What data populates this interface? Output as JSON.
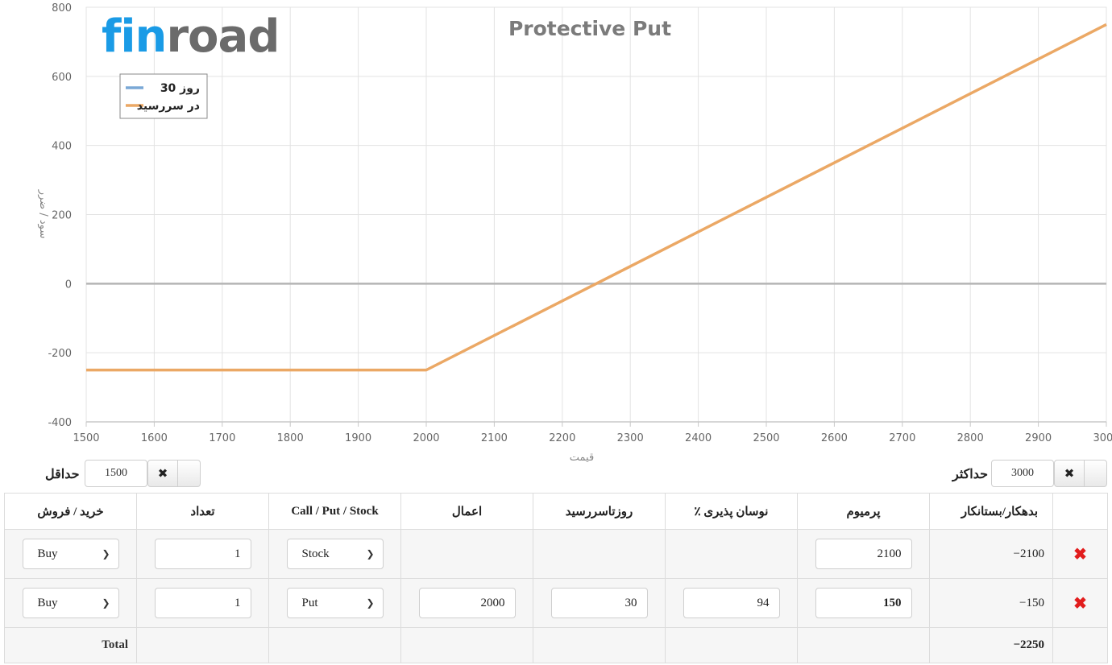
{
  "logo": {
    "part1": "fin",
    "part2": "road"
  },
  "chart_data": {
    "type": "line",
    "title": "Protective Put",
    "xlabel": "قیمت",
    "ylabel": "سود / ضرر",
    "xlim": [
      1500,
      3000
    ],
    "ylim": [
      -400,
      800
    ],
    "xticks": [
      1500,
      1600,
      1700,
      1800,
      1900,
      2000,
      2100,
      2200,
      2300,
      2400,
      2500,
      2600,
      2700,
      2800,
      2900,
      3000
    ],
    "yticks": [
      -400,
      -200,
      0,
      200,
      400,
      600,
      800
    ],
    "grid": true,
    "legend_position": "top-left",
    "series": [
      {
        "name": "روز 30",
        "color": "#7aa8d6",
        "x": [],
        "y": []
      },
      {
        "name": "در سررسید",
        "color": "#eba865",
        "x": [
          1500,
          2000,
          3000
        ],
        "y": [
          -250,
          -250,
          750
        ]
      }
    ]
  },
  "controls": {
    "min_label": "حداقل",
    "min_value": "1500",
    "max_label": "حداکثر",
    "max_value": "3000",
    "clear_icon": "✖"
  },
  "table": {
    "headers": [
      "خرید / فروش",
      "تعداد",
      "Call / Put / Stock",
      "اعمال",
      "روزتاسررسید",
      "٪ نوسان پذیری",
      "پرمیوم",
      "بدهکار/بستانکار",
      ""
    ],
    "rows": [
      {
        "side": "Buy",
        "qty": "1",
        "type": "Stock",
        "strike": "",
        "days": "",
        "vol": "",
        "premium": "2100",
        "debit": "−2100",
        "delete": "✖"
      },
      {
        "side": "Buy",
        "qty": "1",
        "type": "Put",
        "strike": "2000",
        "days": "30",
        "vol": "94",
        "premium": "150",
        "debit": "−150",
        "delete": "✖"
      }
    ],
    "total_label": "Total",
    "total_value": "−2250"
  },
  "colors": {
    "at_expiry": "#eba865",
    "day30": "#7aa8d6",
    "logo_blue": "#1a9be6",
    "logo_gray": "#6b6b6b",
    "delete": "#e21d1d"
  }
}
